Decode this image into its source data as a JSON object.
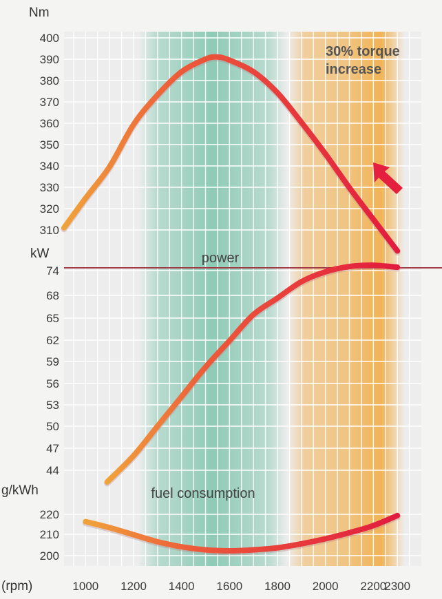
{
  "chart_data": {
    "type": "line",
    "x_label": "(rpm)",
    "x_ticks": [
      1000,
      1200,
      1400,
      1600,
      1800,
      2000,
      2200,
      2300
    ],
    "bands": [
      {
        "name": "green-band",
        "from": 1220,
        "to": 1840,
        "color": "#5cb89a"
      },
      {
        "name": "orange-band",
        "from": 1840,
        "to": 2330,
        "color": "#f2a93b"
      }
    ],
    "panels": [
      {
        "id": "torque",
        "unit": "Nm",
        "y_ticks": [
          400,
          390,
          380,
          370,
          360,
          350,
          340,
          330,
          320,
          310
        ],
        "ylim": [
          306,
          402
        ],
        "annotation": [
          "30% torque",
          "increase"
        ],
        "series": {
          "x": [
            910,
            1000,
            1100,
            1200,
            1300,
            1400,
            1500,
            1550,
            1600,
            1700,
            1800,
            1900,
            2000,
            2100,
            2200,
            2300
          ],
          "y": [
            309,
            323,
            338,
            358,
            372,
            383,
            389,
            390,
            388.5,
            383,
            373,
            359,
            344,
            328,
            313,
            298
          ]
        }
      },
      {
        "id": "power",
        "unit": "kW",
        "title": "power",
        "y_ticks": [
          74,
          68,
          65,
          62,
          59,
          56,
          53,
          50,
          47,
          44
        ],
        "ylim": [
          41.5,
          74
        ],
        "series": {
          "x": [
            1090,
            1200,
            1300,
            1400,
            1500,
            1600,
            1700,
            1800,
            1900,
            2000,
            2100,
            2200,
            2300
          ],
          "y": [
            41.5,
            45.5,
            50,
            54.5,
            59,
            63,
            67,
            69.5,
            72,
            73.5,
            74.3,
            74.5,
            74.2
          ]
        }
      },
      {
        "id": "fuel",
        "unit": "g/kWh",
        "title": "fuel consumption",
        "y_ticks": [
          220,
          210,
          200
        ],
        "ylim": [
          196,
          224
        ],
        "series": {
          "x": [
            1000,
            1100,
            1200,
            1300,
            1400,
            1500,
            1600,
            1700,
            1800,
            1900,
            2000,
            2100,
            2200,
            2300
          ],
          "y": [
            218,
            215,
            211.5,
            208,
            205.5,
            204,
            203.5,
            204,
            205,
            207,
            209.5,
            212.5,
            216,
            221
          ]
        }
      }
    ]
  }
}
